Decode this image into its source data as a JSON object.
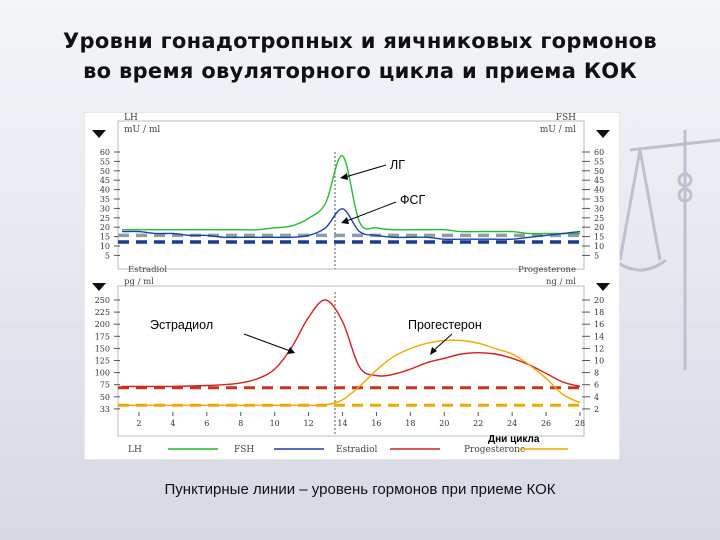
{
  "title_lines": [
    "Уровни гонадотропных и яичниковых гормонов",
    "во время овуляторного  цикла и приема КОК"
  ],
  "caption": "Пунктирные линии – уровень гормонов при приеме КОК",
  "top_panel": {
    "left_header": "LH",
    "left_unit": "mU / ml",
    "right_header": "FSH",
    "right_unit": "mU / ml",
    "left_ticks": [
      60,
      55,
      50,
      45,
      40,
      35,
      30,
      25,
      20,
      15,
      10,
      5
    ],
    "right_ticks": [
      60,
      55,
      50,
      45,
      40,
      35,
      30,
      25,
      20,
      15,
      10,
      5
    ]
  },
  "bottom_panel": {
    "left_header": "Estradiol",
    "left_unit": "pg / ml",
    "right_header": "Progesterone",
    "right_unit": "ng / ml",
    "left_ticks": [
      250,
      225,
      200,
      175,
      150,
      125,
      100,
      75,
      50,
      33
    ],
    "right_ticks": [
      20,
      18,
      16,
      14,
      12,
      10,
      8,
      6,
      4,
      2
    ]
  },
  "x_ticks": [
    2,
    4,
    6,
    8,
    10,
    12,
    14,
    16,
    18,
    20,
    22,
    24,
    26,
    28
  ],
  "x_label": "Дни цикла",
  "annotations": {
    "lh": "ЛГ",
    "fsh": "ФСГ",
    "estradiol": "Эстрадиол",
    "progesterone": "Прогестерон"
  },
  "legend": [
    {
      "label": "LH",
      "color": "#22bb33"
    },
    {
      "label": "FSH",
      "color": "#1a3fa8"
    },
    {
      "label": "Estradiol",
      "color": "#d42020"
    },
    {
      "label": "Progesterone",
      "color": "#f0a800"
    }
  ],
  "colors": {
    "lh": "#22bb33",
    "fsh": "#1a3fa8",
    "estradiol": "#d42020",
    "progesterone": "#f0a800",
    "lh_coc": "#8c9ea8",
    "fsh_coc": "#1a3c8c",
    "estradiol_coc": "#c8341c",
    "progesterone_coc": "#f0a800"
  },
  "chart_data": {
    "type": "line",
    "x": [
      1,
      2,
      3,
      4,
      5,
      6,
      7,
      8,
      9,
      10,
      11,
      12,
      13,
      14,
      15,
      16,
      17,
      18,
      19,
      20,
      21,
      22,
      23,
      24,
      25,
      26,
      27,
      28
    ],
    "xlabel": "Дни цикла",
    "series": [
      {
        "name": "LH",
        "values": [
          16,
          16,
          16,
          16,
          16,
          16,
          16,
          16,
          16,
          17,
          18,
          22,
          30,
          55,
          20,
          17,
          16,
          16,
          16,
          16,
          15,
          15,
          15,
          15,
          14,
          14,
          14,
          14
        ]
      },
      {
        "name": "FSH",
        "values": [
          15,
          15,
          14,
          14,
          13,
          13,
          12,
          12,
          12,
          12,
          12,
          13,
          17,
          27,
          15,
          13,
          12,
          12,
          12,
          11,
          11,
          11,
          11,
          11,
          12,
          13,
          14,
          15
        ]
      },
      {
        "name": "Estradiol",
        "values": [
          50,
          50,
          50,
          50,
          51,
          52,
          54,
          58,
          68,
          90,
          140,
          210,
          250,
          200,
          95,
          75,
          78,
          90,
          105,
          115,
          125,
          128,
          125,
          115,
          100,
          80,
          60,
          50
        ]
      },
      {
        "name": "Progesterone",
        "values": [
          0.5,
          0.5,
          0.5,
          0.5,
          0.5,
          0.5,
          0.5,
          0.5,
          0.5,
          0.5,
          0.5,
          0.5,
          0.6,
          1.5,
          4,
          7,
          9.5,
          11,
          12,
          12.5,
          12.5,
          12,
          11,
          10,
          8,
          5.5,
          2.5,
          1
        ]
      }
    ],
    "coc_levels": {
      "LH": 13,
      "FSH": 9.5,
      "Estradiol": 47,
      "Progesterone": 0.7
    }
  }
}
